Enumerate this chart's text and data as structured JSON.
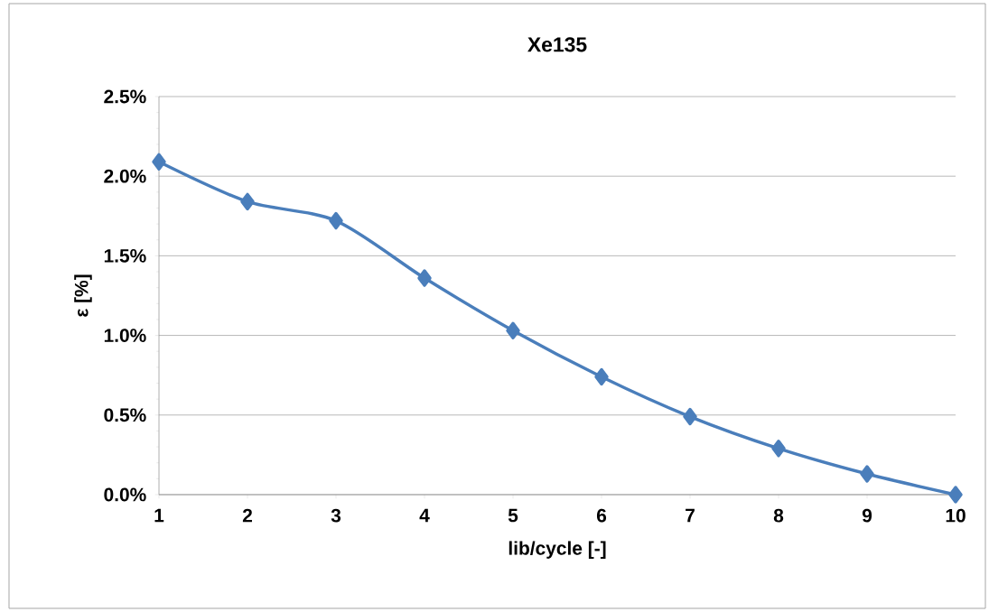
{
  "chart_data": {
    "type": "line",
    "title": "Xe135",
    "xlabel": "lib/cycle [-]",
    "ylabel": "ε [%]",
    "categories": [
      "1",
      "2",
      "3",
      "4",
      "5",
      "6",
      "7",
      "8",
      "9",
      "10"
    ],
    "series": [
      {
        "color": "#4a7ebb",
        "values": [
          2.09,
          1.84,
          1.72,
          1.36,
          1.03,
          0.74,
          0.49,
          0.29,
          0.13,
          0.0
        ]
      }
    ],
    "ylim": [
      0,
      2.5
    ],
    "yticks": [
      {
        "value": 0,
        "label": "0.0%"
      },
      {
        "value": 0.5,
        "label": "0.5%"
      },
      {
        "value": 1.0,
        "label": "1.0%"
      },
      {
        "value": 1.5,
        "label": "1.5%"
      },
      {
        "value": 2.0,
        "label": "2.0%"
      },
      {
        "value": 2.5,
        "label": "2.5%"
      }
    ],
    "grid": "y",
    "marker": "diamond",
    "line_style": "solid"
  }
}
